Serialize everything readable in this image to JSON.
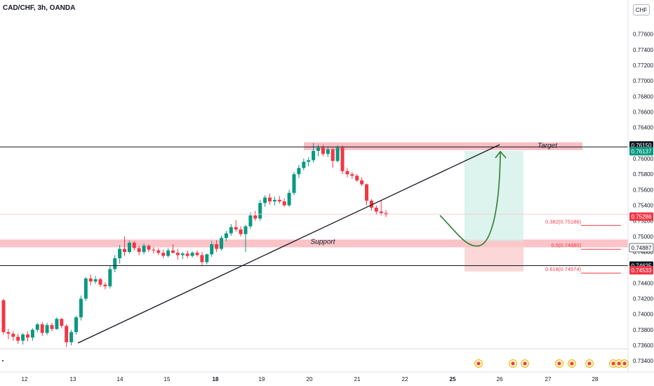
{
  "header": {
    "symbol": "CAD/CHF, 3h, OANDA",
    "currency_button": "CHF"
  },
  "price_axis": {
    "ticks": [
      "0.77600",
      "0.77400",
      "0.77200",
      "0.77000",
      "0.76800",
      "0.76600",
      "0.76400",
      "0.76000",
      "0.75800",
      "0.75600",
      "0.75400",
      "0.75200",
      "0.75000",
      "0.74800",
      "0.74400",
      "0.74200",
      "0.74000",
      "0.73800",
      "0.73600",
      "0.73400"
    ]
  },
  "time_axis": {
    "labels": [
      "12",
      "13",
      "14",
      "15",
      "18",
      "19",
      "20",
      "21",
      "22",
      "25",
      "26",
      "27",
      "28"
    ],
    "bold": [
      "18",
      "25"
    ]
  },
  "price_tags": [
    {
      "value": "0.76150",
      "bg": "#131722",
      "fg": "#ffffff"
    },
    {
      "value": "0.76137",
      "bg": "#089981",
      "fg": "#ffffff"
    },
    {
      "value": "0.75286",
      "bg": "#f23645",
      "fg": "#ffffff"
    },
    {
      "value": "0.74887",
      "bg": "#ffffff",
      "fg": "#131722"
    },
    {
      "value": "0.74625",
      "bg": "#131722",
      "fg": "#ffffff"
    },
    {
      "value": "0.74533",
      "bg": "#f23645",
      "fg": "#ffffff"
    }
  ],
  "annotations": {
    "target_label": "Target",
    "support_label": "Support"
  },
  "fib_levels": [
    {
      "label": "0.382(0.75186)",
      "value": 0.75186
    },
    {
      "label": "0.5(0.74880)",
      "value": 0.7488
    },
    {
      "label": "0.618(0.74574)",
      "value": 0.74574
    }
  ],
  "colors": {
    "up": "#089981",
    "down": "#f23645",
    "zone": "#f7a9b0",
    "target_zone": "#cfeee6",
    "stop_zone": "#f9c9c9",
    "arrow": "#2e7d32"
  },
  "chart_data": {
    "type": "candlestick",
    "symbol": "CAD/CHF",
    "timeframe": "3h",
    "ylim": [
      0.7333,
      0.7785
    ],
    "candles": [
      [
        0.7418,
        0.742,
        0.7374,
        0.7377
      ],
      [
        0.7377,
        0.7381,
        0.7368,
        0.7375
      ],
      [
        0.7375,
        0.7378,
        0.7366,
        0.7371
      ],
      [
        0.7371,
        0.7375,
        0.7362,
        0.7366
      ],
      [
        0.7366,
        0.7376,
        0.7361,
        0.7374
      ],
      [
        0.7374,
        0.7378,
        0.7365,
        0.737
      ],
      [
        0.737,
        0.7382,
        0.7366,
        0.738
      ],
      [
        0.738,
        0.7389,
        0.7377,
        0.7387
      ],
      [
        0.7387,
        0.739,
        0.7372,
        0.7376
      ],
      [
        0.7376,
        0.7389,
        0.7373,
        0.7386
      ],
      [
        0.7386,
        0.7389,
        0.7378,
        0.7381
      ],
      [
        0.7381,
        0.7396,
        0.738,
        0.7394
      ],
      [
        0.7394,
        0.7395,
        0.7382,
        0.7385
      ],
      [
        0.7385,
        0.7387,
        0.7358,
        0.7364
      ],
      [
        0.7364,
        0.738,
        0.736,
        0.7377
      ],
      [
        0.7377,
        0.7398,
        0.7374,
        0.7396
      ],
      [
        0.7396,
        0.7424,
        0.7392,
        0.742
      ],
      [
        0.742,
        0.7448,
        0.7417,
        0.7446
      ],
      [
        0.7446,
        0.7451,
        0.7437,
        0.7442
      ],
      [
        0.7442,
        0.7449,
        0.7439,
        0.7445
      ],
      [
        0.7445,
        0.7447,
        0.7435,
        0.7438
      ],
      [
        0.7438,
        0.7441,
        0.7432,
        0.7436
      ],
      [
        0.7436,
        0.7462,
        0.7433,
        0.7458
      ],
      [
        0.7458,
        0.7476,
        0.7454,
        0.7472
      ],
      [
        0.7472,
        0.7489,
        0.7465,
        0.7484
      ],
      [
        0.7484,
        0.75,
        0.7475,
        0.748
      ],
      [
        0.748,
        0.7495,
        0.7478,
        0.7492
      ],
      [
        0.7492,
        0.7494,
        0.7482,
        0.7485
      ],
      [
        0.7485,
        0.7488,
        0.7476,
        0.748
      ],
      [
        0.748,
        0.7491,
        0.7477,
        0.7488
      ],
      [
        0.7488,
        0.749,
        0.748,
        0.7483
      ],
      [
        0.7483,
        0.7486,
        0.7478,
        0.7482
      ],
      [
        0.7482,
        0.7485,
        0.7476,
        0.7479
      ],
      [
        0.7479,
        0.7483,
        0.7472,
        0.7475
      ],
      [
        0.7475,
        0.7485,
        0.7473,
        0.7482
      ],
      [
        0.7482,
        0.749,
        0.7478,
        0.7479
      ],
      [
        0.7479,
        0.7484,
        0.747,
        0.7476
      ],
      [
        0.7476,
        0.748,
        0.7471,
        0.7478
      ],
      [
        0.7478,
        0.7482,
        0.7472,
        0.7475
      ],
      [
        0.7475,
        0.7481,
        0.7473,
        0.7479
      ],
      [
        0.7479,
        0.7482,
        0.7474,
        0.7476
      ],
      [
        0.7476,
        0.748,
        0.7463,
        0.7467
      ],
      [
        0.7467,
        0.7478,
        0.7464,
        0.7477
      ],
      [
        0.7477,
        0.7494,
        0.7474,
        0.749
      ],
      [
        0.749,
        0.7495,
        0.748,
        0.7484
      ],
      [
        0.7484,
        0.7501,
        0.7482,
        0.7498
      ],
      [
        0.7498,
        0.7507,
        0.7494,
        0.7504
      ],
      [
        0.7504,
        0.7516,
        0.7501,
        0.7512
      ],
      [
        0.7512,
        0.7521,
        0.7506,
        0.7509
      ],
      [
        0.7509,
        0.7513,
        0.75,
        0.7503
      ],
      [
        0.7503,
        0.7515,
        0.748,
        0.7513
      ],
      [
        0.7513,
        0.7531,
        0.751,
        0.7527
      ],
      [
        0.7527,
        0.7533,
        0.752,
        0.7523
      ],
      [
        0.7523,
        0.7547,
        0.752,
        0.7543
      ],
      [
        0.7543,
        0.7553,
        0.7538,
        0.755
      ],
      [
        0.755,
        0.7555,
        0.7541,
        0.7545
      ],
      [
        0.7545,
        0.7551,
        0.754,
        0.7547
      ],
      [
        0.7547,
        0.7552,
        0.7542,
        0.7545
      ],
      [
        0.7545,
        0.7549,
        0.7538,
        0.754
      ],
      [
        0.754,
        0.756,
        0.7538,
        0.7556
      ],
      [
        0.7556,
        0.7583,
        0.7553,
        0.758
      ],
      [
        0.758,
        0.7592,
        0.7575,
        0.7588
      ],
      [
        0.7588,
        0.76,
        0.7585,
        0.7596
      ],
      [
        0.7596,
        0.7602,
        0.759,
        0.7598
      ],
      [
        0.7598,
        0.762,
        0.7595,
        0.761
      ],
      [
        0.761,
        0.7618,
        0.7603,
        0.7614
      ],
      [
        0.7614,
        0.7618,
        0.7603,
        0.7606
      ],
      [
        0.7606,
        0.7615,
        0.7602,
        0.7612
      ],
      [
        0.7612,
        0.7614,
        0.7588,
        0.7597
      ],
      [
        0.7597,
        0.7617,
        0.7595,
        0.7614
      ],
      [
        0.7614,
        0.7617,
        0.758,
        0.7584
      ],
      [
        0.7584,
        0.7588,
        0.7576,
        0.758
      ],
      [
        0.758,
        0.7583,
        0.7574,
        0.7578
      ],
      [
        0.7578,
        0.758,
        0.757,
        0.7572
      ],
      [
        0.7572,
        0.7576,
        0.7565,
        0.7567
      ],
      [
        0.7567,
        0.7568,
        0.754,
        0.7546
      ],
      [
        0.7546,
        0.7548,
        0.7533,
        0.7537
      ],
      [
        0.7537,
        0.754,
        0.7528,
        0.7532
      ],
      [
        0.7532,
        0.7546,
        0.7527,
        0.753
      ],
      [
        0.753,
        0.7534,
        0.7525,
        0.7528
      ]
    ],
    "levels": {
      "target": 0.7615,
      "support": 0.74887,
      "lower_line": 0.74625,
      "target_zone": [
        0.7611,
        0.7621
      ],
      "support_zone": [
        0.7486,
        0.7496
      ]
    },
    "trendline": {
      "from_price": 0.7363,
      "to_price": 0.7618
    },
    "projection": {
      "dip_to": 0.7488,
      "target": 0.761
    },
    "position": {
      "entry": 0.7494,
      "target": 0.761,
      "stop": 0.7455
    }
  }
}
